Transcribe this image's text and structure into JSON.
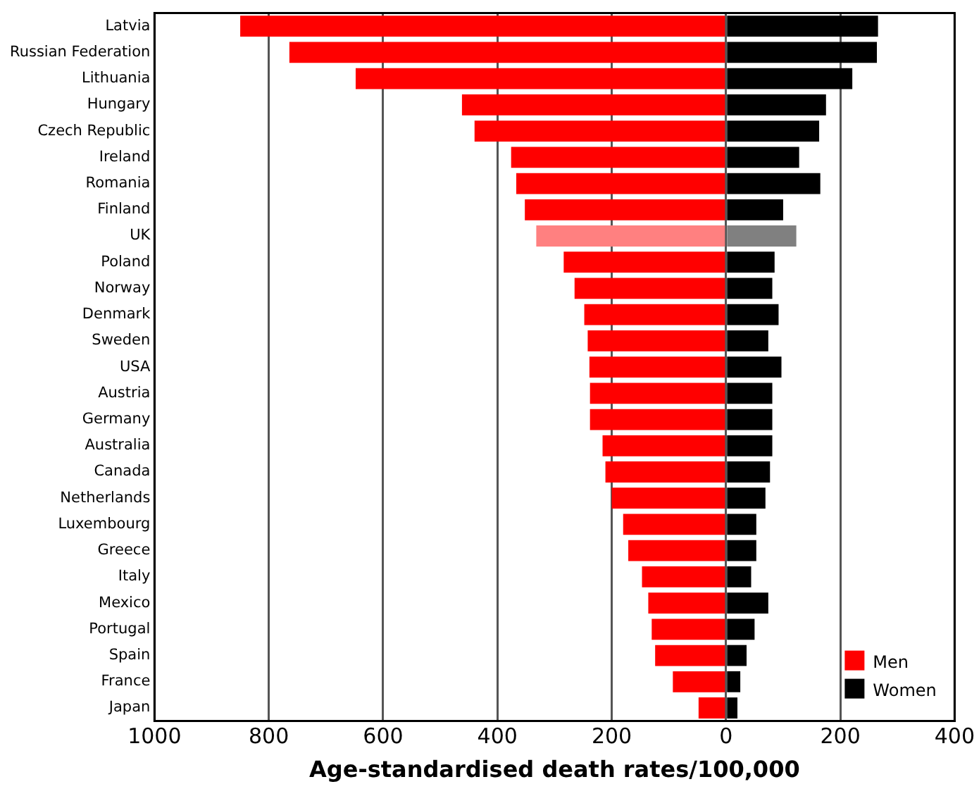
{
  "chart_data": {
    "type": "bar",
    "orientation": "horizontal",
    "stacked": true,
    "xlabel": "Age-standardised death rates/100,000",
    "categories": [
      "Latvia",
      "Russian Federation",
      "Lithuania",
      "Hungary",
      "Czech Republic",
      "Ireland",
      "Romania",
      "Finland",
      "UK",
      "Poland",
      "Norway",
      "Denmark",
      "Sweden",
      "USA",
      "Austria",
      "Germany",
      "Australia",
      "Canada",
      "Netherlands",
      "Luxembourg",
      "Greece",
      "Italy",
      "Mexico",
      "Portugal",
      "Spain",
      "France",
      "Japan"
    ],
    "series": [
      {
        "name": "Men",
        "color": "#ff0000",
        "colors": [
          "#ff0000",
          "#ff0000",
          "#ff0000",
          "#ff0000",
          "#ff0000",
          "#ff0000",
          "#ff0000",
          "#ff0000",
          "#ff8080",
          "#ff0000",
          "#ff0000",
          "#ff0000",
          "#ff0000",
          "#ff0000",
          "#ff0000",
          "#ff0000",
          "#ff0000",
          "#ff0000",
          "#ff0000",
          "#ff0000",
          "#ff0000",
          "#ff0000",
          "#ff0000",
          "#ff0000",
          "#ff0000",
          "#ff0000",
          "#ff0000"
        ],
        "values": [
          -850,
          -764,
          -648,
          -462,
          -440,
          -376,
          -367,
          -352,
          -332,
          -284,
          -265,
          -248,
          -242,
          -239,
          -238,
          -238,
          -216,
          -211,
          -200,
          -180,
          -171,
          -147,
          -136,
          -130,
          -124,
          -93,
          -48
        ]
      },
      {
        "name": "Women",
        "color": "#000000",
        "colors": [
          "#000000",
          "#000000",
          "#000000",
          "#000000",
          "#000000",
          "#000000",
          "#000000",
          "#000000",
          "#808080",
          "#000000",
          "#000000",
          "#000000",
          "#000000",
          "#000000",
          "#000000",
          "#000000",
          "#000000",
          "#000000",
          "#000000",
          "#000000",
          "#000000",
          "#000000",
          "#000000",
          "#000000",
          "#000000",
          "#000000",
          "#000000"
        ],
        "values": [
          266,
          264,
          221,
          175,
          163,
          128,
          165,
          100,
          123,
          85,
          81,
          92,
          74,
          97,
          81,
          81,
          81,
          77,
          69,
          53,
          53,
          44,
          74,
          50,
          36,
          25,
          20
        ]
      }
    ],
    "xlim": [
      -1000,
      400
    ],
    "xticks": [
      {
        "value": -1000,
        "label": "1000"
      },
      {
        "value": -800,
        "label": "800"
      },
      {
        "value": -600,
        "label": "600"
      },
      {
        "value": -400,
        "label": "400"
      },
      {
        "value": -200,
        "label": "200"
      },
      0,
      200,
      400
    ],
    "grid": "x",
    "legend": "bottom right"
  }
}
